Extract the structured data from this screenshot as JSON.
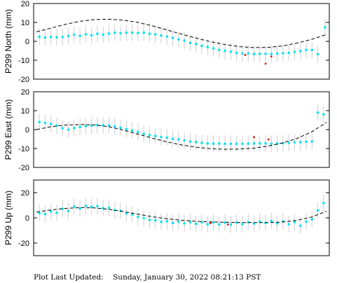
{
  "footer": {
    "label": "Plot Last Updated:",
    "timestamp": "Sunday, January 30, 2022 08:21:13 PST"
  },
  "style": {
    "point_color": "#00e5ee",
    "errorbar_color": "#cfcfcf",
    "outlier_color": "#ff0000",
    "model_line_color": "#000000",
    "model_line_style": "dashed"
  },
  "chart_data": [
    {
      "type": "scatter",
      "ylabel": "P299 North (mm)",
      "ylim": [
        -20,
        20
      ],
      "yticks": [
        -20,
        -10,
        0,
        10,
        20
      ],
      "xlim": [
        0,
        1
      ],
      "series": [
        {
          "kind": "points",
          "values": [
            [
              0.01,
              2.4
            ],
            [
              0.03,
              2.0
            ],
            [
              0.05,
              2.3
            ],
            [
              0.07,
              2.1
            ],
            [
              0.09,
              2.3
            ],
            [
              0.11,
              2.8
            ],
            [
              0.13,
              3.5
            ],
            [
              0.15,
              2.9
            ],
            [
              0.17,
              3.7
            ],
            [
              0.19,
              3.2
            ],
            [
              0.21,
              4.0
            ],
            [
              0.23,
              3.5
            ],
            [
              0.25,
              4.1
            ],
            [
              0.27,
              4.6
            ],
            [
              0.29,
              4.3
            ],
            [
              0.31,
              4.6
            ],
            [
              0.33,
              4.6
            ],
            [
              0.35,
              4.4
            ],
            [
              0.37,
              4.6
            ],
            [
              0.39,
              4.0
            ],
            [
              0.41,
              3.7
            ],
            [
              0.43,
              3.1
            ],
            [
              0.45,
              2.5
            ],
            [
              0.47,
              1.9
            ],
            [
              0.49,
              1.0
            ],
            [
              0.51,
              0.4
            ],
            [
              0.53,
              -0.8
            ],
            [
              0.55,
              -1.4
            ],
            [
              0.57,
              -2.4
            ],
            [
              0.59,
              -3.0
            ],
            [
              0.61,
              -3.7
            ],
            [
              0.63,
              -4.5
            ],
            [
              0.65,
              -5.0
            ],
            [
              0.67,
              -5.5
            ],
            [
              0.69,
              -6.1
            ],
            [
              0.71,
              -6.4
            ],
            [
              0.73,
              -6.4
            ],
            [
              0.75,
              -6.7
            ],
            [
              0.77,
              -6.6
            ],
            [
              0.79,
              -6.6
            ],
            [
              0.81,
              -6.7
            ],
            [
              0.83,
              -6.4
            ],
            [
              0.85,
              -6.3
            ],
            [
              0.87,
              -6.1
            ],
            [
              0.89,
              -5.6
            ],
            [
              0.91,
              -5.1
            ],
            [
              0.93,
              -4.6
            ],
            [
              0.95,
              -4.6
            ],
            [
              0.97,
              -6.8
            ],
            [
              0.995,
              7.4
            ]
          ]
        },
        {
          "kind": "outliers",
          "values": [
            [
              0.72,
              -7.2
            ],
            [
              0.79,
              -11.8
            ],
            [
              0.81,
              -8.0
            ]
          ]
        },
        {
          "kind": "model",
          "values": [
            [
              0.0,
              5.0
            ],
            [
              0.05,
              7.0
            ],
            [
              0.1,
              9.0
            ],
            [
              0.15,
              10.6
            ],
            [
              0.2,
              11.5
            ],
            [
              0.25,
              11.7
            ],
            [
              0.3,
              11.2
            ],
            [
              0.35,
              10.0
            ],
            [
              0.4,
              8.2
            ],
            [
              0.45,
              6.0
            ],
            [
              0.5,
              3.8
            ],
            [
              0.55,
              1.7
            ],
            [
              0.6,
              -0.2
            ],
            [
              0.65,
              -1.7
            ],
            [
              0.7,
              -2.8
            ],
            [
              0.75,
              -3.3
            ],
            [
              0.8,
              -3.2
            ],
            [
              0.85,
              -2.4
            ],
            [
              0.9,
              -0.9
            ],
            [
              0.95,
              1.1
            ],
            [
              1.0,
              3.6
            ]
          ]
        }
      ]
    },
    {
      "type": "scatter",
      "ylabel": "P299 East (mm)",
      "ylim": [
        -20,
        20
      ],
      "yticks": [
        -20,
        -10,
        0,
        10,
        20
      ],
      "xlim": [
        0,
        1
      ],
      "series": [
        {
          "kind": "points",
          "values": [
            [
              0.01,
              4.0
            ],
            [
              0.03,
              3.6
            ],
            [
              0.05,
              3.0
            ],
            [
              0.07,
              2.1
            ],
            [
              0.09,
              0.7
            ],
            [
              0.11,
              0.0
            ],
            [
              0.13,
              0.8
            ],
            [
              0.15,
              1.4
            ],
            [
              0.17,
              1.9
            ],
            [
              0.19,
              2.1
            ],
            [
              0.21,
              2.4
            ],
            [
              0.23,
              2.3
            ],
            [
              0.25,
              2.2
            ],
            [
              0.27,
              1.7
            ],
            [
              0.29,
              1.0
            ],
            [
              0.31,
              0.2
            ],
            [
              0.33,
              -0.5
            ],
            [
              0.35,
              -1.3
            ],
            [
              0.37,
              -2.2
            ],
            [
              0.39,
              -2.9
            ],
            [
              0.41,
              -3.4
            ],
            [
              0.43,
              -3.9
            ],
            [
              0.45,
              -4.3
            ],
            [
              0.47,
              -4.8
            ],
            [
              0.49,
              -5.2
            ],
            [
              0.51,
              -5.7
            ],
            [
              0.53,
              -6.3
            ],
            [
              0.55,
              -6.6
            ],
            [
              0.57,
              -7.0
            ],
            [
              0.59,
              -7.3
            ],
            [
              0.61,
              -7.4
            ],
            [
              0.63,
              -7.4
            ],
            [
              0.65,
              -7.5
            ],
            [
              0.67,
              -7.5
            ],
            [
              0.69,
              -7.5
            ],
            [
              0.71,
              -7.5
            ],
            [
              0.73,
              -7.4
            ],
            [
              0.75,
              -7.3
            ],
            [
              0.77,
              -7.3
            ],
            [
              0.79,
              -7.3
            ],
            [
              0.81,
              -7.5
            ],
            [
              0.83,
              -7.4
            ],
            [
              0.85,
              -7.2
            ],
            [
              0.87,
              -7.0
            ],
            [
              0.89,
              -6.7
            ],
            [
              0.91,
              -6.6
            ],
            [
              0.93,
              -6.4
            ],
            [
              0.95,
              -6.2
            ],
            [
              0.97,
              9.0
            ],
            [
              0.99,
              8.0
            ]
          ]
        },
        {
          "kind": "outliers",
          "values": [
            [
              0.75,
              -4.0
            ],
            [
              0.8,
              -5.2
            ]
          ]
        },
        {
          "kind": "model",
          "values": [
            [
              0.0,
              0.0
            ],
            [
              0.05,
              1.5
            ],
            [
              0.1,
              2.4
            ],
            [
              0.15,
              2.7
            ],
            [
              0.2,
              2.5
            ],
            [
              0.25,
              1.5
            ],
            [
              0.3,
              -0.3
            ],
            [
              0.35,
              -2.4
            ],
            [
              0.4,
              -4.5
            ],
            [
              0.45,
              -6.5
            ],
            [
              0.5,
              -8.1
            ],
            [
              0.55,
              -9.3
            ],
            [
              0.6,
              -10.1
            ],
            [
              0.65,
              -10.4
            ],
            [
              0.7,
              -10.3
            ],
            [
              0.75,
              -9.8
            ],
            [
              0.8,
              -8.7
            ],
            [
              0.85,
              -7.0
            ],
            [
              0.9,
              -4.6
            ],
            [
              0.95,
              -1.1
            ],
            [
              1.0,
              3.8
            ]
          ]
        }
      ]
    },
    {
      "type": "scatter",
      "ylabel": "P299 Up (mm)",
      "ylim": [
        -30,
        30
      ],
      "yticks": [
        -20,
        0,
        20
      ],
      "xlim": [
        0,
        1
      ],
      "series": [
        {
          "kind": "points",
          "values": [
            [
              0.01,
              3.7
            ],
            [
              0.03,
              3.0
            ],
            [
              0.05,
              5.1
            ],
            [
              0.07,
              4.0
            ],
            [
              0.09,
              7.2
            ],
            [
              0.11,
              5.4
            ],
            [
              0.13,
              9.0
            ],
            [
              0.15,
              7.4
            ],
            [
              0.17,
              9.5
            ],
            [
              0.19,
              8.7
            ],
            [
              0.21,
              9.3
            ],
            [
              0.23,
              7.6
            ],
            [
              0.25,
              8.0
            ],
            [
              0.27,
              6.1
            ],
            [
              0.29,
              5.7
            ],
            [
              0.31,
              3.4
            ],
            [
              0.33,
              2.7
            ],
            [
              0.35,
              0.7
            ],
            [
              0.37,
              -0.2
            ],
            [
              0.39,
              -1.6
            ],
            [
              0.41,
              -2.0
            ],
            [
              0.43,
              -3.2
            ],
            [
              0.45,
              -2.7
            ],
            [
              0.47,
              -4.0
            ],
            [
              0.49,
              -3.1
            ],
            [
              0.51,
              -4.4
            ],
            [
              0.53,
              -3.3
            ],
            [
              0.55,
              -4.7
            ],
            [
              0.57,
              -3.4
            ],
            [
              0.59,
              -5.1
            ],
            [
              0.61,
              -3.6
            ],
            [
              0.63,
              -5.2
            ],
            [
              0.65,
              -3.8
            ],
            [
              0.67,
              -5.3
            ],
            [
              0.69,
              -3.7
            ],
            [
              0.71,
              -5.0
            ],
            [
              0.73,
              -3.5
            ],
            [
              0.75,
              -4.5
            ],
            [
              0.77,
              -3.0
            ],
            [
              0.79,
              -4.0
            ],
            [
              0.81,
              -2.5
            ],
            [
              0.83,
              -4.4
            ],
            [
              0.85,
              -2.8
            ],
            [
              0.87,
              -5.1
            ],
            [
              0.89,
              -3.4
            ],
            [
              0.91,
              -6.2
            ],
            [
              0.93,
              -3.0
            ],
            [
              0.95,
              -1.1
            ],
            [
              0.97,
              5.9
            ],
            [
              0.99,
              11.7
            ]
          ]
        },
        {
          "kind": "outliers",
          "values": [
            [
              0.6,
              -4.2
            ],
            [
              0.66,
              -5.3
            ]
          ]
        },
        {
          "kind": "model",
          "values": [
            [
              0.0,
              4.6
            ],
            [
              0.05,
              6.3
            ],
            [
              0.1,
              7.5
            ],
            [
              0.15,
              8.1
            ],
            [
              0.2,
              7.9
            ],
            [
              0.25,
              6.8
            ],
            [
              0.3,
              5.0
            ],
            [
              0.35,
              2.9
            ],
            [
              0.4,
              0.9
            ],
            [
              0.45,
              -0.7
            ],
            [
              0.5,
              -1.9
            ],
            [
              0.55,
              -2.7
            ],
            [
              0.6,
              -3.2
            ],
            [
              0.65,
              -3.5
            ],
            [
              0.7,
              -3.7
            ],
            [
              0.75,
              -3.8
            ],
            [
              0.8,
              -3.8
            ],
            [
              0.85,
              -3.3
            ],
            [
              0.9,
              -1.9
            ],
            [
              0.95,
              0.7
            ],
            [
              1.0,
              5.2
            ]
          ]
        }
      ]
    }
  ]
}
